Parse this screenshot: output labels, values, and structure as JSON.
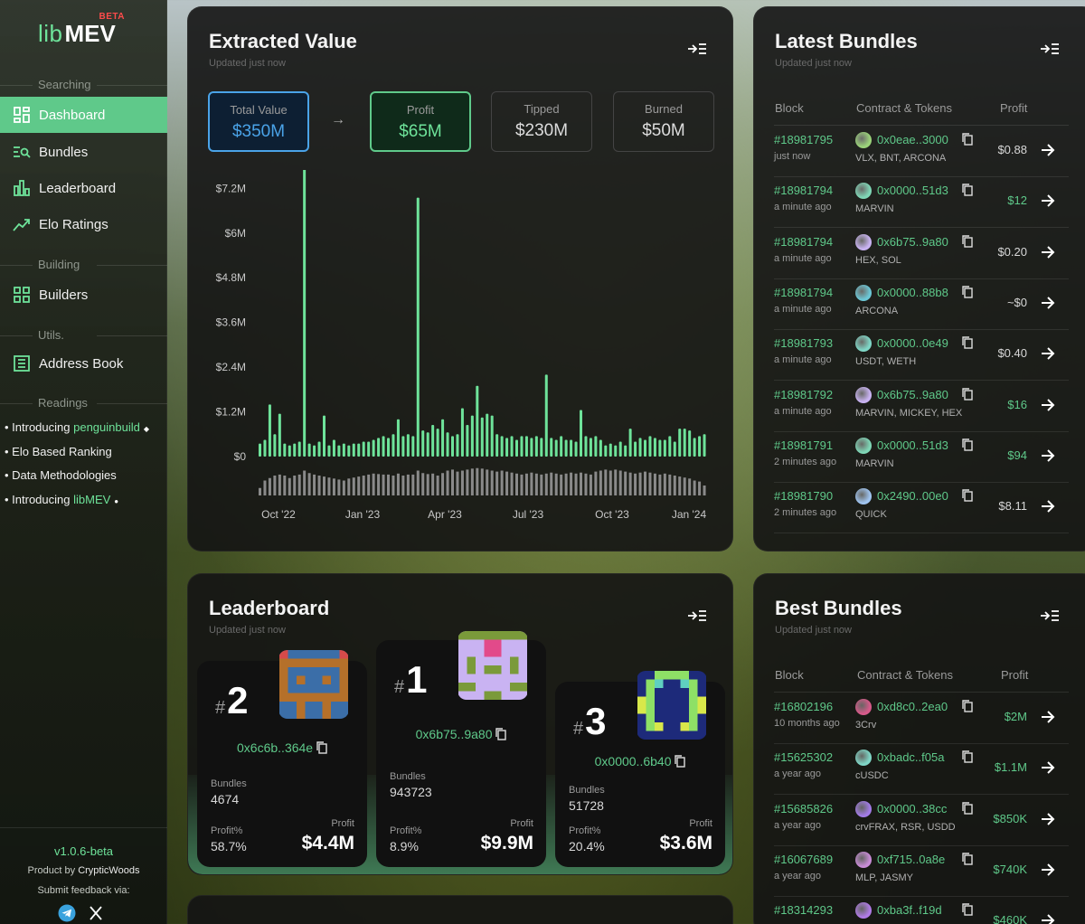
{
  "sidebar": {
    "logo": {
      "lib": "lib",
      "mev": "MEV",
      "beta": "BETA"
    },
    "sections": {
      "searching": "Searching",
      "building": "Building",
      "utils": "Utils.",
      "readings": "Readings"
    },
    "nav": {
      "dashboard": "Dashboard",
      "bundles": "Bundles",
      "leaderboard": "Leaderboard",
      "elo": "Elo Ratings",
      "builders": "Builders",
      "address_book": "Address Book"
    },
    "readings": [
      {
        "prefix": "• Introducing ",
        "highlight": "penguinbuild"
      },
      {
        "prefix": "• Elo Based Ranking",
        "highlight": ""
      },
      {
        "prefix": "• Data Methodologies",
        "highlight": ""
      },
      {
        "prefix": "• Introducing ",
        "highlight": "libMEV"
      }
    ],
    "version": "v1.0.6-beta",
    "product_prefix": "Product by ",
    "product_name": "CrypticWoods",
    "feedback": "Submit feedback via:",
    "social": [
      "telegram-icon",
      "x-icon"
    ],
    "colors": {
      "accent": "#5fc98a",
      "beta": "#ff4b4b"
    }
  },
  "extracted": {
    "title": "Extracted Value",
    "updated": "Updated just now",
    "stats": [
      {
        "label": "Total Value",
        "value": "$350M",
        "style": "blue"
      },
      {
        "label": "Profit",
        "value": "$65M",
        "style": "green"
      },
      {
        "label": "Tipped",
        "value": "$230M",
        "style": "plain"
      },
      {
        "label": "Burned",
        "value": "$50M",
        "style": "plain"
      }
    ],
    "arrow": "→"
  },
  "chart_data": {
    "type": "bar",
    "title": "",
    "xlabel": "",
    "ylabel": "",
    "ylim": [
      0,
      7.5
    ],
    "y_unit": "$M",
    "yticks": [
      "$7.2M",
      "$6M",
      "$4.8M",
      "$3.6M",
      "$2.4M",
      "$1.2M",
      "$0"
    ],
    "ytick_values": [
      7.2,
      6.0,
      4.8,
      3.6,
      2.4,
      1.2,
      0
    ],
    "xticks": [
      "Oct '22",
      "Jan '23",
      "Apr '23",
      "Jul '23",
      "Oct '23",
      "Jan '24"
    ],
    "grid": false,
    "series": [
      {
        "color": "#6ee39a",
        "values": [
          0.35,
          0.45,
          1.4,
          0.6,
          1.15,
          0.35,
          0.3,
          0.35,
          0.4,
          7.75,
          0.35,
          0.3,
          0.4,
          1.1,
          0.3,
          0.45,
          0.3,
          0.35,
          0.3,
          0.35,
          0.35,
          0.4,
          0.4,
          0.45,
          0.5,
          0.55,
          0.5,
          0.6,
          1.0,
          0.55,
          0.6,
          0.55,
          6.95,
          0.7,
          0.65,
          0.85,
          0.75,
          1.0,
          0.65,
          0.55,
          0.6,
          1.3,
          0.85,
          1.1,
          1.9,
          1.05,
          1.15,
          1.1,
          0.6,
          0.55,
          0.5,
          0.55,
          0.45,
          0.55,
          0.55,
          0.5,
          0.55,
          0.5,
          2.2,
          0.5,
          0.45,
          0.55,
          0.45,
          0.45,
          0.4,
          1.25,
          0.55,
          0.5,
          0.55,
          0.45,
          0.3,
          0.35,
          0.3,
          0.4,
          0.3,
          0.75,
          0.4,
          0.5,
          0.45,
          0.55,
          0.5,
          0.45,
          0.45,
          0.55,
          0.4,
          0.75,
          0.75,
          0.7,
          0.5,
          0.55,
          0.6
        ]
      },
      {
        "color": "#8a8a8a",
        "values": [
          0.15,
          0.3,
          0.35,
          0.4,
          0.42,
          0.4,
          0.35,
          0.4,
          0.42,
          0.5,
          0.45,
          0.42,
          0.4,
          0.38,
          0.36,
          0.34,
          0.32,
          0.3,
          0.34,
          0.36,
          0.38,
          0.4,
          0.42,
          0.44,
          0.43,
          0.42,
          0.42,
          0.4,
          0.44,
          0.4,
          0.42,
          0.42,
          0.5,
          0.45,
          0.43,
          0.44,
          0.4,
          0.45,
          0.5,
          0.52,
          0.48,
          0.5,
          0.52,
          0.54,
          0.55,
          0.54,
          0.52,
          0.5,
          0.48,
          0.5,
          0.48,
          0.46,
          0.44,
          0.42,
          0.44,
          0.46,
          0.44,
          0.42,
          0.44,
          0.46,
          0.44,
          0.42,
          0.44,
          0.46,
          0.44,
          0.46,
          0.44,
          0.42,
          0.48,
          0.5,
          0.52,
          0.5,
          0.52,
          0.5,
          0.48,
          0.46,
          0.44,
          0.46,
          0.48,
          0.46,
          0.44,
          0.42,
          0.44,
          0.42,
          0.4,
          0.38,
          0.36,
          0.34,
          0.3,
          0.28,
          0.2
        ]
      }
    ]
  },
  "latest": {
    "title": "Latest Bundles",
    "updated": "Updated just now",
    "headers": {
      "block": "Block",
      "contract": "Contract & Tokens",
      "profit": "Profit"
    },
    "rows": [
      {
        "block": "#18981795",
        "ago": "just now",
        "addr": "0x0eae..3000",
        "tokens": "VLX, BNT, ARCONA",
        "profit": "$0.88",
        "pcolor": "#d8d8d8",
        "avatar": "#9bd27a"
      },
      {
        "block": "#18981794",
        "ago": "a minute ago",
        "addr": "0x0000..51d3",
        "tokens": "MARVIN",
        "profit": "$12",
        "pcolor": "#5fc98a",
        "avatar": "#7fd6b6"
      },
      {
        "block": "#18981794",
        "ago": "a minute ago",
        "addr": "0x6b75..9a80",
        "tokens": "HEX, SOL",
        "profit": "$0.20",
        "pcolor": "#d8d8d8",
        "avatar": "#c9b3f2"
      },
      {
        "block": "#18981794",
        "ago": "a minute ago",
        "addr": "0x0000..88b8",
        "tokens": "ARCONA",
        "profit": "~$0",
        "pcolor": "#d8d8d8",
        "avatar": "#6cc7d6"
      },
      {
        "block": "#18981793",
        "ago": "a minute ago",
        "addr": "0x0000..0e49",
        "tokens": "USDT, WETH",
        "profit": "$0.40",
        "pcolor": "#d8d8d8",
        "avatar": "#7fd6c6"
      },
      {
        "block": "#18981792",
        "ago": "a minute ago",
        "addr": "0x6b75..9a80",
        "tokens": "MARVIN, MICKEY, HEX",
        "profit": "$16",
        "pcolor": "#5fc98a",
        "avatar": "#c9b3f2"
      },
      {
        "block": "#18981791",
        "ago": "2 minutes ago",
        "addr": "0x0000..51d3",
        "tokens": "MARVIN",
        "profit": "$94",
        "pcolor": "#5fc98a",
        "avatar": "#7fd6b6"
      },
      {
        "block": "#18981790",
        "ago": "2 minutes ago",
        "addr": "0x2490..00e0",
        "tokens": "QUICK",
        "profit": "$8.11",
        "pcolor": "#d8d8d8",
        "avatar": "#9fc4f0"
      }
    ]
  },
  "leaderboard": {
    "title": "Leaderboard",
    "updated": "Updated just now",
    "hash": "#",
    "entries": [
      {
        "rank": "2",
        "addr": "0x6c6b..364e",
        "bundles_label": "Bundles",
        "bundles": "4674",
        "pct_label": "Profit%",
        "pct": "58.7%",
        "profit_label": "Profit",
        "profit": "$4.4M"
      },
      {
        "rank": "1",
        "addr": "0x6b75..9a80",
        "bundles_label": "Bundles",
        "bundles": "943723",
        "pct_label": "Profit%",
        "pct": "8.9%",
        "profit_label": "Profit",
        "profit": "$9.9M"
      },
      {
        "rank": "3",
        "addr": "0x0000..6b40",
        "bundles_label": "Bundles",
        "bundles": "51728",
        "pct_label": "Profit%",
        "pct": "20.4%",
        "profit_label": "Profit",
        "profit": "$3.6M"
      }
    ]
  },
  "best": {
    "title": "Best Bundles",
    "updated": "Updated just now",
    "headers": {
      "block": "Block",
      "contract": "Contract & Tokens",
      "profit": "Profit"
    },
    "rows": [
      {
        "block": "#16802196",
        "ago": "10 months ago",
        "addr": "0xd8c0..2ea0",
        "tokens": "3Crv",
        "profit": "$2M",
        "pcolor": "#5fc98a",
        "avatar": "#d65a8a"
      },
      {
        "block": "#15625302",
        "ago": "a year ago",
        "addr": "0xbadc..f05a",
        "tokens": "cUSDC",
        "profit": "$1.1M",
        "pcolor": "#5fc98a",
        "avatar": "#7fd6c6"
      },
      {
        "block": "#15685826",
        "ago": "a year ago",
        "addr": "0x0000..38cc",
        "tokens": "crvFRAX, RSR, USDD",
        "profit": "$850K",
        "pcolor": "#5fc98a",
        "avatar": "#a27be6"
      },
      {
        "block": "#16067689",
        "ago": "a year ago",
        "addr": "0xf715..0a8e",
        "tokens": "MLP, JASMY",
        "profit": "$740K",
        "pcolor": "#5fc98a",
        "avatar": "#c88cd6"
      },
      {
        "block": "#18314293",
        "ago": "",
        "addr": "0xba3f..f19d",
        "tokens": "",
        "profit": "$460K",
        "pcolor": "#5fc98a",
        "avatar": "#b07be6"
      }
    ]
  }
}
